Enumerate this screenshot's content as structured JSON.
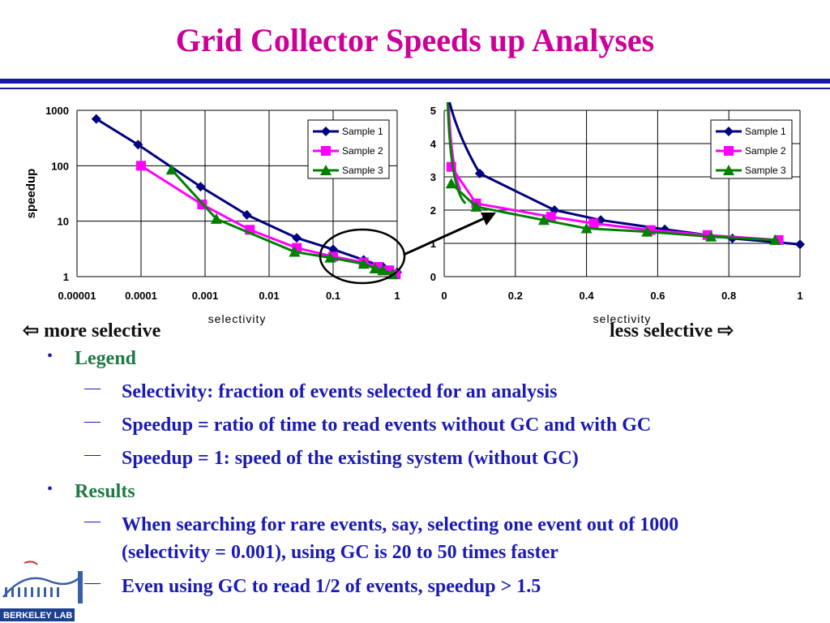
{
  "title": "Grid Collector Speeds up Analyses",
  "directions": {
    "left": "more selective",
    "right": "less selective"
  },
  "bullets": [
    {
      "level": 1,
      "text": "Legend"
    },
    {
      "level": 2,
      "text": "Selectivity: fraction of events selected for an analysis"
    },
    {
      "level": 2,
      "text": "Speedup = ratio of time to read events without GC and with GC"
    },
    {
      "level": 2,
      "text": "Speedup = 1: speed of the existing system (without GC)"
    },
    {
      "level": 1,
      "text": "Results"
    },
    {
      "level": 2,
      "text": "When searching for rare events, say, selecting one event out of 1000"
    },
    {
      "level": 2,
      "text": "(selectivity = 0.001), using GC is 20 to 50 times faster"
    },
    {
      "level": 2,
      "text": "Even using GC to read 1/2 of events, speedup > 1.5"
    }
  ],
  "logo_text": "BERKELEY LAB",
  "colors": {
    "title": "#cc0099",
    "rule": "#1a1aa0",
    "level1": "#1f7a43",
    "level2": "#1a1ab4",
    "sample1": "#000080",
    "sample2": "#ff00ff",
    "sample3": "#008000",
    "callout": "#000000"
  },
  "chart_data": [
    {
      "type": "line",
      "xscale": "log",
      "yscale": "log",
      "xlabel": "selectivity",
      "ylabel": "speedup",
      "xlim": [
        1e-05,
        1
      ],
      "ylim": [
        1,
        1000
      ],
      "xticks": [
        "0.00001",
        "0.0001",
        "0.001",
        "0.01",
        "0.1",
        "1"
      ],
      "yticks": [
        "1",
        "10",
        "100",
        "1000"
      ],
      "grid": true,
      "legend": "top-right",
      "series": [
        {
          "name": "Sample 1",
          "marker": "diamond",
          "x": [
            2e-05,
            9e-05,
            0.00085,
            0.0045,
            0.027,
            0.1,
            0.3,
            0.6,
            1.0
          ],
          "y": [
            700,
            240,
            42,
            13,
            5,
            3.1,
            2,
            1.5,
            1.2
          ]
        },
        {
          "name": "Sample 2",
          "marker": "square",
          "x": [
            0.0001,
            0.0009,
            0.005,
            0.027,
            0.1,
            0.3,
            0.5,
            0.75,
            0.95
          ],
          "y": [
            100,
            20,
            7,
            3.3,
            2.3,
            1.8,
            1.5,
            1.3,
            1.1
          ]
        },
        {
          "name": "Sample 3",
          "marker": "triangle",
          "x": [
            0.0003,
            0.0015,
            0.025,
            0.09,
            0.3,
            0.45,
            0.6,
            0.85
          ],
          "y": [
            85,
            11,
            2.8,
            2.2,
            1.7,
            1.4,
            1.3,
            1.1
          ]
        }
      ]
    },
    {
      "type": "line",
      "xlabel": "selectivity",
      "ylabel": "speedup",
      "xlim": [
        0,
        1
      ],
      "ylim": [
        0,
        5
      ],
      "xticks": [
        "0",
        "0.2",
        "0.4",
        "0.6",
        "0.8",
        "1"
      ],
      "yticks": [
        "0",
        "1",
        "2",
        "3",
        "4",
        "5"
      ],
      "grid": true,
      "legend": "top-right",
      "series": [
        {
          "name": "Sample 1",
          "marker": "diamond",
          "x": [
            0.1,
            0.31,
            0.44,
            0.62,
            0.81,
            1.0
          ],
          "y": [
            3.1,
            2.0,
            1.7,
            1.42,
            1.15,
            0.97
          ]
        },
        {
          "name": "Sample 2",
          "marker": "square",
          "x": [
            0.02,
            0.09,
            0.3,
            0.42,
            0.58,
            0.74,
            0.94
          ],
          "y": [
            3.3,
            2.2,
            1.8,
            1.6,
            1.4,
            1.25,
            1.1
          ]
        },
        {
          "name": "Sample 3",
          "marker": "triangle",
          "x": [
            0.02,
            0.09,
            0.28,
            0.4,
            0.57,
            0.75,
            0.93
          ],
          "y": [
            2.8,
            2.1,
            1.7,
            1.45,
            1.35,
            1.2,
            1.1
          ]
        }
      ]
    }
  ]
}
